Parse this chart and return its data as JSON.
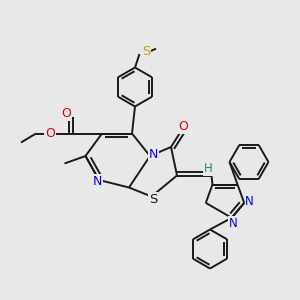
{
  "bg_color": "#e8e8e8",
  "bond_color": "#1a1a1a",
  "bond_lw": 1.4,
  "atom_colors": {
    "N": "#0000ee",
    "O": "#dd0000",
    "S_yellow": "#bbaa00",
    "S_black": "#1a1a1a",
    "H": "#2a8080",
    "C": "#1a1a1a"
  },
  "font_size": 8.0
}
